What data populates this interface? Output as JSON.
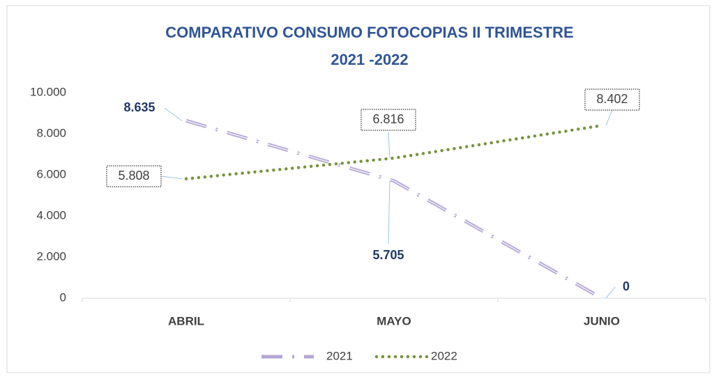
{
  "chart_data": {
    "type": "line",
    "title": [
      "COMPARATIVO CONSUMO FOTOCOPIAS II TRIMESTRE",
      "2021 -2022"
    ],
    "categories": [
      "ABRIL",
      "MAYO",
      "JUNIO"
    ],
    "series": [
      {
        "name": "2021",
        "color": "#b4a7d6",
        "values": [
          8635,
          5705,
          0
        ],
        "value_labels": [
          "8.635",
          "5.705",
          "0"
        ]
      },
      {
        "name": "2022",
        "color": "#77933c",
        "values": [
          5808,
          6816,
          8402
        ],
        "value_labels": [
          "5.808",
          "6.816",
          "8.402"
        ]
      }
    ],
    "ylim": [
      0,
      10000
    ],
    "yticks": [
      0,
      {
        "value": 2000,
        "label": "2.000"
      },
      {
        "value": 4000,
        "label": "4.000"
      },
      {
        "value": 6000,
        "label": "6.000"
      },
      {
        "value": 8000,
        "label": "8.000"
      },
      {
        "value": 10000,
        "label": "10.000"
      }
    ],
    "grid": false,
    "legend": "bottom"
  }
}
